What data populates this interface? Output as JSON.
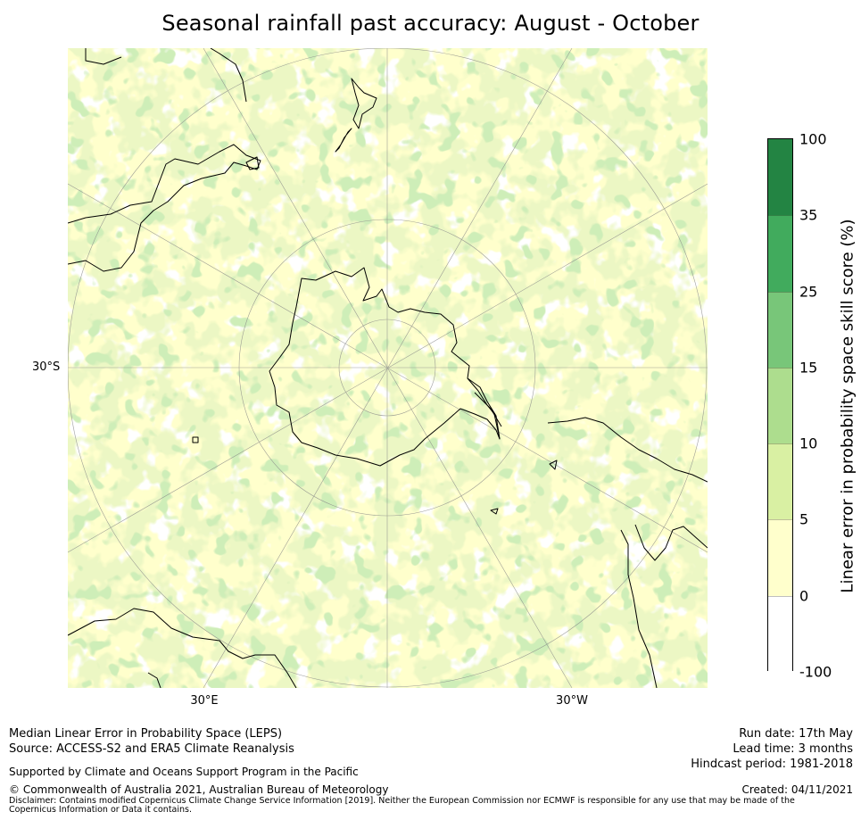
{
  "title": "Seasonal rainfall past accuracy: August - October",
  "map": {
    "projection": "south-polar-stereographic",
    "lat_labels": [
      "30°S"
    ],
    "lon_labels": [
      "30°E",
      "30°W"
    ]
  },
  "legend": {
    "label": "Linear error in probability space skill score (%)",
    "ticks": [
      "100",
      "35",
      "25",
      "15",
      "10",
      "5",
      "0",
      "-100"
    ],
    "bins": [
      {
        "range": [
          -100,
          0
        ],
        "color": "#ffffff"
      },
      {
        "range": [
          0,
          5
        ],
        "color": "#ffffcc"
      },
      {
        "range": [
          5,
          10
        ],
        "color": "#d9f0a3"
      },
      {
        "range": [
          10,
          15
        ],
        "color": "#addd8e"
      },
      {
        "range": [
          15,
          25
        ],
        "color": "#78c679"
      },
      {
        "range": [
          25,
          35
        ],
        "color": "#41ab5d"
      },
      {
        "range": [
          35,
          100
        ],
        "color": "#238443"
      }
    ]
  },
  "footer": {
    "left": {
      "line1": "Median Linear Error in Probability Space (LEPS)",
      "line2": "Source: ACCESS-S2 and ERA5 Climate Reanalysis",
      "support": "Supported by Climate and Oceans Support Program in the Pacific",
      "copyright": "© Commonwealth of Australia 2021, Australian Bureau of Meteorology",
      "disclaimer": "Disclaimer: Contains modified Copernicus Climate Change Service Information [2019]. Neither the European Commission nor ECMWF is responsible for any use that may be made of the Copernicus Information or Data it contains."
    },
    "right": {
      "run_date": "Run date: 17th May",
      "lead_time": "Lead time: 3 months",
      "hindcast": "Hindcast period: 1981-2018",
      "created": "Created: 04/11/2021"
    }
  }
}
